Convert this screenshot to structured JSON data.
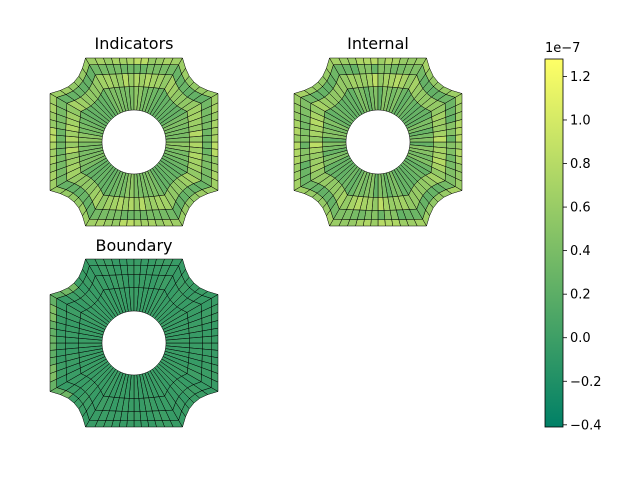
{
  "panels": [
    {
      "id": "indicators",
      "title": "Indicators",
      "outer_band": "mixed",
      "inner_band": "mixed",
      "spoke_band": "mixed"
    },
    {
      "id": "internal",
      "title": "Internal",
      "outer_band": "mixed",
      "inner_band": "mixed",
      "spoke_band": "mixed"
    },
    {
      "id": "boundary",
      "title": "Boundary",
      "outer_band": "mostly-zero",
      "inner_band": "zero",
      "spoke_band": "zero"
    }
  ],
  "colorbar": {
    "colormap": "summer",
    "multiplier_label": "1e−7",
    "min": -0.41,
    "max": 1.28,
    "ticks": [
      {
        "value": 1.2,
        "label": "1.2"
      },
      {
        "value": 1.0,
        "label": "1.0"
      },
      {
        "value": 0.8,
        "label": "0.8"
      },
      {
        "value": 0.6,
        "label": "0.6"
      },
      {
        "value": 0.4,
        "label": "0.4"
      },
      {
        "value": 0.2,
        "label": "0.2"
      },
      {
        "value": 0.0,
        "label": "0.0"
      },
      {
        "value": -0.2,
        "label": "−0.2"
      },
      {
        "value": -0.4,
        "label": "−0.4"
      }
    ]
  },
  "colors": {
    "colormap_low": "#008066",
    "colormap_high": "#ffff66",
    "mesh_edge": "#000000"
  }
}
